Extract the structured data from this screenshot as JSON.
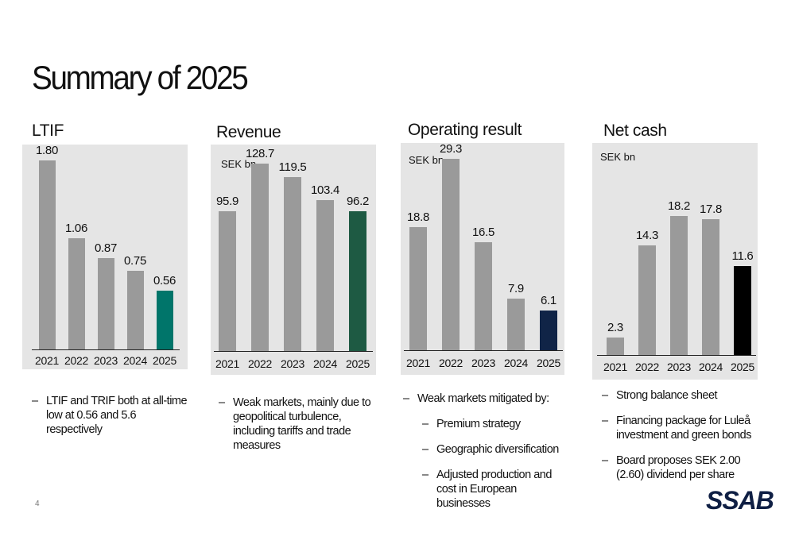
{
  "page": {
    "title": "Summary of 2025",
    "page_number": "4",
    "logo_text": "SSAB"
  },
  "colors": {
    "panel_bg": "#e5e5e5",
    "bar_grey": "#9a9a9a",
    "ltif_highlight": "#00756a",
    "revenue_highlight": "#1e5a43",
    "operating_highlight": "#102447",
    "net_cash_highlight": "#000000"
  },
  "chart_data": [
    {
      "type": "bar",
      "title": "LTIF",
      "unit": "",
      "categories": [
        "2021",
        "2022",
        "2023",
        "2024",
        "2025"
      ],
      "values": [
        1.8,
        1.06,
        0.87,
        0.75,
        0.56
      ],
      "labels": [
        "1.80",
        "1.06",
        "0.87",
        "0.75",
        "0.56"
      ],
      "highlight_index": 4,
      "ylim": [
        0,
        2.0
      ]
    },
    {
      "type": "bar",
      "title": "Revenue",
      "unit": "SEK bn",
      "categories": [
        "2021",
        "2022",
        "2023",
        "2024",
        "2025"
      ],
      "values": [
        95.9,
        128.7,
        119.5,
        103.4,
        96.2
      ],
      "labels": [
        "95.9",
        "128.7",
        "119.5",
        "103.4",
        "96.2"
      ],
      "highlight_index": 4,
      "ylim": [
        0,
        150
      ]
    },
    {
      "type": "bar",
      "title": "Operating result",
      "unit": "SEK bn",
      "categories": [
        "2021",
        "2022",
        "2023",
        "2024",
        "2025"
      ],
      "values": [
        18.8,
        29.3,
        16.5,
        7.9,
        6.1
      ],
      "labels": [
        "18.8",
        "29.3",
        "16.5",
        "7.9",
        "6.1"
      ],
      "highlight_index": 4,
      "ylim": [
        0,
        33
      ]
    },
    {
      "type": "bar",
      "title": "Net cash",
      "unit": "SEK bn",
      "categories": [
        "2021",
        "2022",
        "2023",
        "2024",
        "2025"
      ],
      "values": [
        2.3,
        14.3,
        18.2,
        17.8,
        11.6
      ],
      "labels": [
        "2.3",
        "14.3",
        "18.2",
        "17.8",
        "11.6"
      ],
      "highlight_index": 4,
      "ylim": [
        0,
        20
      ]
    }
  ],
  "bullets": {
    "ltif": [
      {
        "text": "LTIF and TRIF both at all-time low at 0.56 and 5.6 respectively",
        "level": 0
      }
    ],
    "revenue": [
      {
        "text": "Weak markets, mainly due to geopolitical turbulence, including tariffs and trade measures",
        "level": 0
      }
    ],
    "operating": [
      {
        "text": "Weak markets mitigated by:",
        "level": 0
      },
      {
        "text": "Premium strategy",
        "level": 1
      },
      {
        "text": "Geographic diversification",
        "level": 1
      },
      {
        "text": "Adjusted production and cost in European businesses",
        "level": 1
      }
    ],
    "net_cash": [
      {
        "text": "Strong balance sheet",
        "level": 0
      },
      {
        "text": "Financing package for Luleå investment and green bonds",
        "level": 0
      },
      {
        "text": "Board proposes SEK 2.00 (2.60) dividend per share",
        "level": 0
      }
    ]
  }
}
